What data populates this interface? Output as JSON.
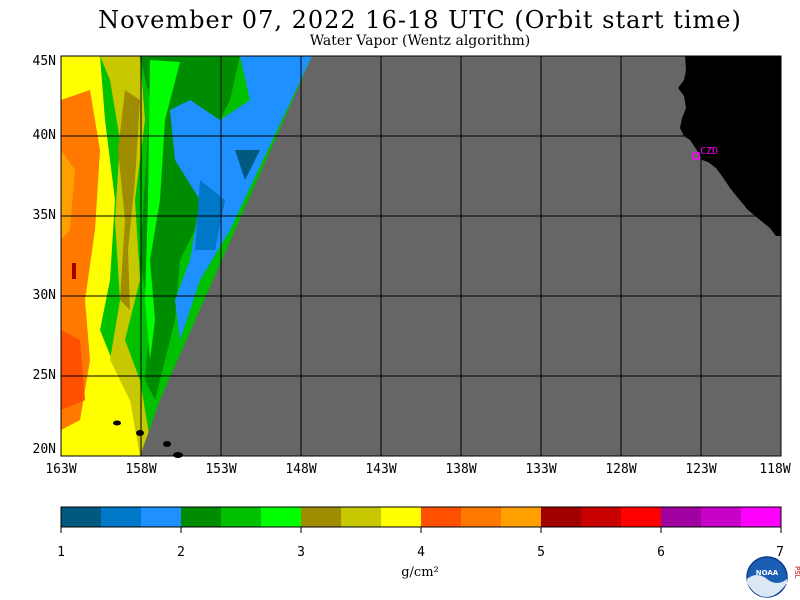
{
  "header": {
    "title": "November 07, 2022  16-18 UTC  (Orbit start time)",
    "subtitle": "Water Vapor (Wentz algorithm)"
  },
  "map": {
    "lat_labels": [
      "45N",
      "40N",
      "35N",
      "30N",
      "25N",
      "20N"
    ],
    "lon_labels": [
      "163W",
      "158W",
      "153W",
      "148W",
      "143W",
      "138W",
      "133W",
      "128W",
      "123W",
      "118W"
    ],
    "station_label": "CZD",
    "colors": {
      "no_data": "#666666",
      "land": "#000000",
      "grid": "#000000",
      "station": "#ff00ff"
    }
  },
  "colorbar": {
    "tick_labels": [
      "1",
      "2",
      "3",
      "4",
      "5",
      "6",
      "7"
    ],
    "units": "g/cm²",
    "colors": [
      "#005a80",
      "#0078c8",
      "#1e90ff",
      "#008c00",
      "#00c000",
      "#00ff00",
      "#a08c00",
      "#c8c800",
      "#ffff00",
      "#ff5000",
      "#ff7800",
      "#ffa000",
      "#a00000",
      "#c80000",
      "#ff0000",
      "#a000a0",
      "#c800c8",
      "#ff00ff"
    ]
  },
  "logo": {
    "name": "NOAA",
    "side_text": "PSL"
  }
}
